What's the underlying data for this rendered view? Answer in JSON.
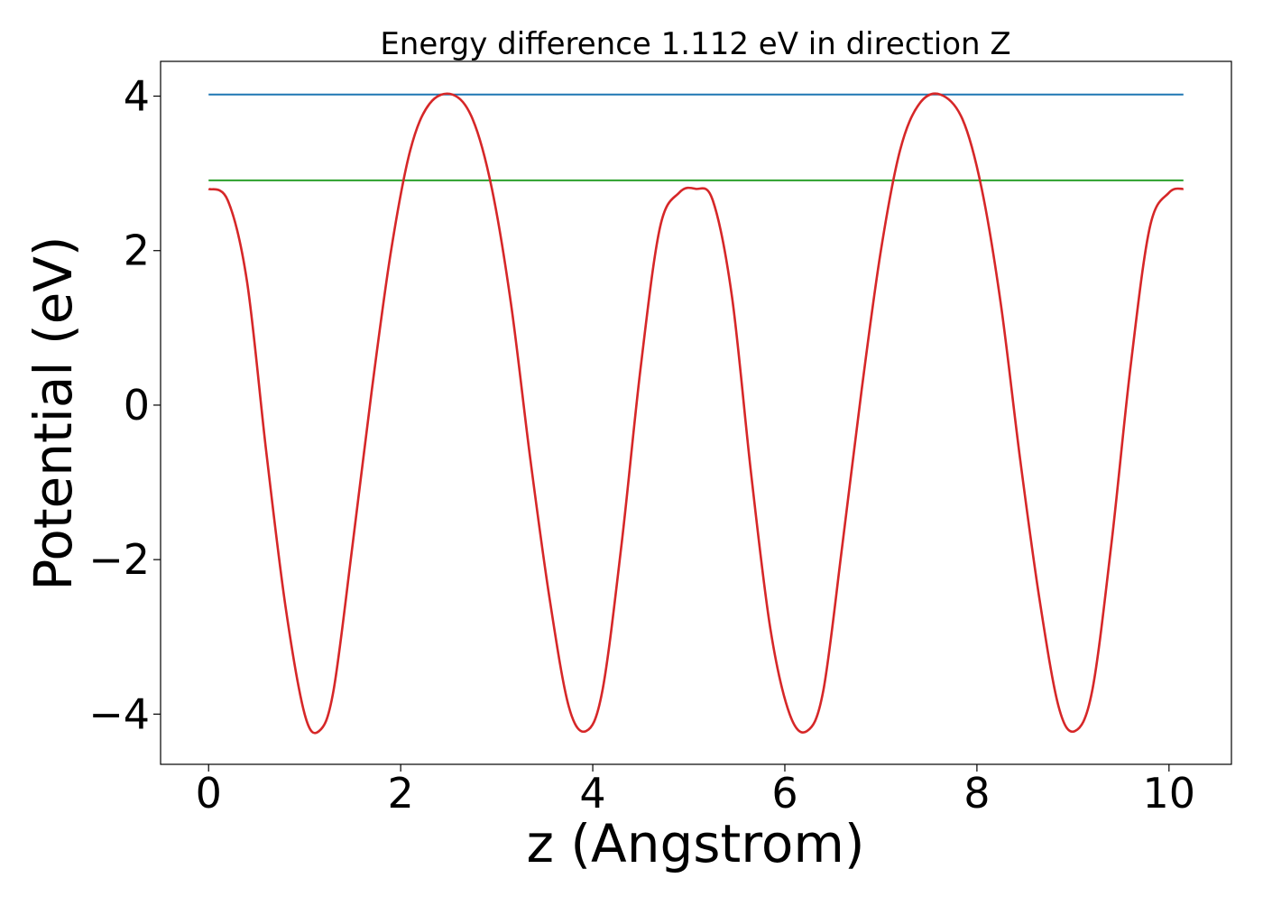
{
  "chart_data": {
    "type": "line",
    "title": "Energy difference 1.112 eV in direction Z",
    "xlabel": "z (Angstrom)",
    "ylabel": "Potential (eV)",
    "xlim": [
      -0.5,
      10.65
    ],
    "ylim": [
      -4.65,
      4.45
    ],
    "xticks": [
      0,
      2,
      4,
      6,
      8,
      10
    ],
    "xtick_labels": [
      "0",
      "2",
      "4",
      "6",
      "8",
      "10"
    ],
    "yticks": [
      4,
      2,
      0,
      -2,
      -4
    ],
    "ytick_labels": [
      "4",
      "2",
      "0",
      "−2",
      "−4"
    ],
    "grid": false,
    "legend": false,
    "potential_curve": {
      "color": "#d62728",
      "x": [
        0.0,
        0.2,
        0.4,
        0.6,
        0.8,
        1.0,
        1.15,
        1.3,
        1.5,
        1.7,
        1.9,
        2.1,
        2.3,
        2.54,
        2.75,
        2.95,
        3.15,
        3.35,
        3.55,
        3.75,
        3.93,
        4.1,
        4.3,
        4.5,
        4.7,
        4.9,
        5.07,
        5.25,
        5.45,
        5.65,
        5.85,
        6.05,
        6.23,
        6.4,
        6.6,
        6.8,
        7.0,
        7.2,
        7.4,
        7.62,
        7.85,
        8.05,
        8.25,
        8.45,
        8.65,
        8.85,
        9.02,
        9.2,
        9.4,
        9.6,
        9.8,
        10.0,
        10.15
      ],
      "y": [
        2.8,
        2.65,
        1.6,
        -0.6,
        -2.6,
        -4.0,
        -4.22,
        -3.7,
        -1.8,
        0.2,
        2.0,
        3.3,
        3.9,
        4.02,
        3.7,
        2.8,
        1.3,
        -0.7,
        -2.5,
        -3.9,
        -4.22,
        -3.7,
        -1.8,
        0.5,
        2.3,
        2.75,
        2.8,
        2.65,
        1.4,
        -0.9,
        -2.9,
        -4.0,
        -4.22,
        -3.7,
        -1.8,
        0.2,
        2.0,
        3.3,
        3.9,
        4.02,
        3.7,
        2.8,
        1.3,
        -0.7,
        -2.5,
        -3.9,
        -4.22,
        -3.7,
        -1.8,
        0.5,
        2.3,
        2.75,
        2.8
      ]
    },
    "reference_lines": [
      {
        "color": "#1f77b4",
        "x_start": 0.0,
        "x_end": 10.15,
        "y": 4.02
      },
      {
        "color": "#2ca02c",
        "x_start": 0.0,
        "x_end": 10.15,
        "y": 2.91
      }
    ]
  }
}
